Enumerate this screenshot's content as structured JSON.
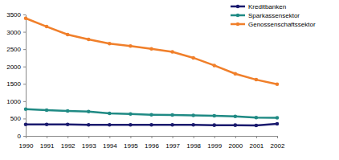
{
  "chart_data": {
    "type": "line",
    "categories": [
      "1990",
      "1991",
      "1992",
      "1993",
      "1994",
      "1995",
      "1996",
      "1997",
      "1998",
      "1999",
      "2000",
      "2001",
      "2002"
    ],
    "series": [
      {
        "name": "Kreditbanken",
        "color": "#1a1a6e",
        "marker": "circle",
        "line_style": "solid",
        "values": [
          330,
          330,
          330,
          320,
          320,
          320,
          320,
          320,
          320,
          310,
          310,
          300,
          350
        ]
      },
      {
        "name": "Sparkassensektor",
        "color": "#1f8a84",
        "marker": "circle",
        "line_style": "solid",
        "values": [
          770,
          740,
          720,
          700,
          650,
          630,
          610,
          600,
          590,
          580,
          560,
          530,
          520
        ]
      },
      {
        "name": "Genossenschaftssektor",
        "color": "#f07f2a",
        "marker": "circle",
        "line_style": "solid",
        "values": [
          3390,
          3150,
          2920,
          2780,
          2660,
          2590,
          2510,
          2420,
          2250,
          2030,
          1790,
          1620,
          1490
        ]
      }
    ],
    "ylim": [
      0,
      3500
    ],
    "yticks": [
      0,
      500,
      1000,
      1500,
      2000,
      2500,
      3000,
      3500
    ],
    "grid": false,
    "legend": "upper right"
  }
}
